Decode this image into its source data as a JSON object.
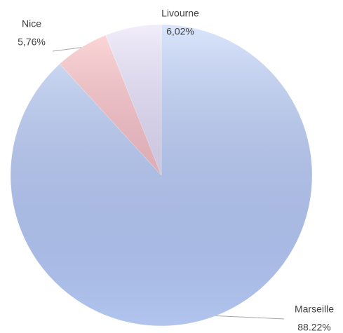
{
  "chart_data": {
    "type": "pie",
    "categories": [
      "Marseille",
      "Nice",
      "Livourne"
    ],
    "values": [
      88.22,
      5.76,
      6.02
    ],
    "value_labels": [
      "88.22%",
      "5,76%",
      "6,02%"
    ],
    "colors": [
      "#bcd1f9",
      "#ffbcbc",
      "#e6def6"
    ]
  }
}
